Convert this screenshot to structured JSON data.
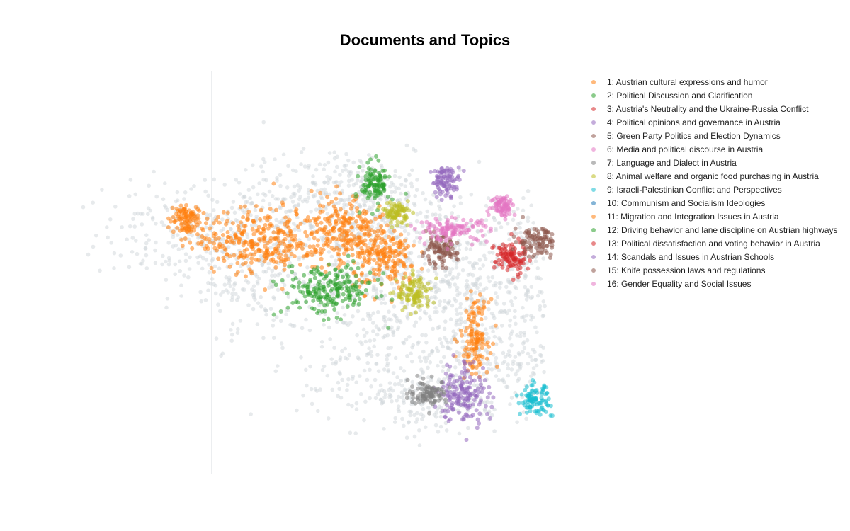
{
  "chart_data": {
    "type": "scatter",
    "title": "Documents and Topics",
    "xlabel": "",
    "ylabel": "",
    "grid": false,
    "legend_placement": "right",
    "background_points_color": "#cfd6da",
    "series": [
      {
        "name": "1: Austrian cultural expressions and humor",
        "color": "#ff7f0e",
        "clusters": [
          [
            4.6,
            7.6,
            0.22,
            0.25
          ],
          [
            6.8,
            7.0,
            0.9,
            0.45
          ],
          [
            9.1,
            7.3,
            0.45,
            0.5
          ],
          [
            10.3,
            6.5,
            0.45,
            0.45
          ],
          [
            12.8,
            4.3,
            0.2,
            0.5
          ]
        ]
      },
      {
        "name": "2: Political Discussion and Clarification",
        "color": "#2ca02c",
        "clusters": [
          [
            8.7,
            5.6,
            0.65,
            0.35
          ],
          [
            10.0,
            8.6,
            0.2,
            0.3
          ]
        ]
      },
      {
        "name": "3: Austria's Neutrality and the Ukraine-Russia Conflict",
        "color": "#d62728",
        "clusters": [
          [
            13.8,
            6.5,
            0.22,
            0.25
          ],
          [
            16.1,
            3.1,
            0.35,
            0.2
          ],
          [
            16.6,
            2.8,
            0.22,
            0.17
          ]
        ]
      },
      {
        "name": "4: Political opinions and governance in Austria",
        "color": "#9467bd",
        "clusters": [
          [
            12.0,
            8.7,
            0.2,
            0.2
          ],
          [
            12.5,
            2.7,
            0.35,
            0.45
          ]
        ]
      },
      {
        "name": "5: Green Party Politics and Election Dynamics",
        "color": "#8c564b",
        "clusters": [
          [
            14.6,
            7.0,
            0.35,
            0.22
          ],
          [
            11.8,
            6.7,
            0.25,
            0.2
          ]
        ]
      },
      {
        "name": "6: Media and political discourse in Austria",
        "color": "#e377c2",
        "clusters": [
          [
            12.2,
            7.3,
            0.5,
            0.16
          ],
          [
            13.6,
            8.0,
            0.17,
            0.15
          ]
        ]
      },
      {
        "name": "7: Language and Dialect in Austria",
        "color": "#7f7f7f",
        "clusters": [
          [
            11.5,
            2.7,
            0.28,
            0.17
          ]
        ]
      },
      {
        "name": "8: Animal welfare and organic food purchasing in Austria",
        "color": "#bcbd22",
        "clusters": [
          [
            11.1,
            5.5,
            0.25,
            0.25
          ],
          [
            10.6,
            7.8,
            0.17,
            0.15
          ]
        ]
      },
      {
        "name": "9: Israeli-Palestinian Conflict and Perspectives",
        "color": "#17becf",
        "clusters": [
          [
            14.5,
            2.5,
            0.2,
            0.2
          ],
          [
            15.2,
            2.1,
            0.15,
            0.15
          ]
        ]
      },
      {
        "name": "10: Communism and Socialism Ideologies",
        "color": "#1f77b4",
        "clusters": [
          [
            16.0,
            4.0,
            0.15,
            0.15
          ]
        ]
      },
      {
        "name": "11: Migration and Integration Issues in Austria",
        "color": "#ff7f0e",
        "clusters": []
      },
      {
        "name": "12: Driving behavior and lane discipline on Austrian highways",
        "color": "#2ca02c",
        "clusters": []
      },
      {
        "name": "13: Political dissatisfaction and voting behavior in Austria",
        "color": "#d62728",
        "clusters": []
      },
      {
        "name": "14: Scandals and Issues in Austrian Schools",
        "color": "#9467bd",
        "clusters": []
      },
      {
        "name": "15: Knife possession laws and regulations",
        "color": "#8c564b",
        "clusters": []
      },
      {
        "name": "16: Gender Equality and Social Issues",
        "color": "#e377c2",
        "clusters": []
      }
    ]
  }
}
